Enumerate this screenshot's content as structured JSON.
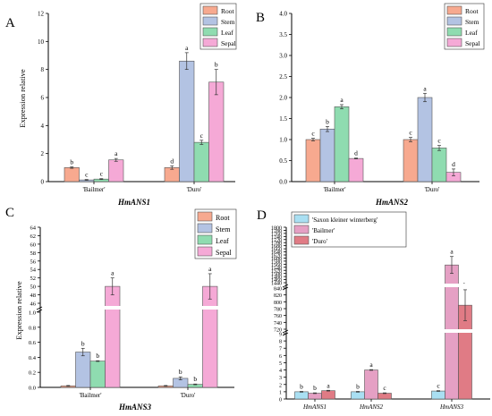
{
  "figure": {
    "panel_letters": [
      "A",
      "B",
      "C",
      "D"
    ]
  },
  "chart_data": [
    {
      "panel": "A",
      "type": "bar",
      "categories": [
        "'Bailmer'",
        "'Duro'"
      ],
      "series": [
        {
          "name": "Root",
          "color": "#f7a98f",
          "values": [
            1.0,
            1.0
          ],
          "errors": [
            0.05,
            0.12
          ],
          "letters": [
            "b",
            "d"
          ]
        },
        {
          "name": "Stem",
          "color": "#b3c3e3",
          "values": [
            0.12,
            8.6
          ],
          "errors": [
            0.03,
            0.6
          ],
          "letters": [
            "c",
            "a"
          ]
        },
        {
          "name": "Leaf",
          "color": "#8fdcb0",
          "values": [
            0.18,
            2.8
          ],
          "errors": [
            0.03,
            0.15
          ],
          "letters": [
            "c",
            "c"
          ]
        },
        {
          "name": "Sepal",
          "color": "#f5a9d6",
          "values": [
            1.55,
            7.1
          ],
          "errors": [
            0.1,
            0.9
          ],
          "letters": [
            "a",
            "b"
          ]
        }
      ],
      "ylabel": "Expression relative",
      "xlabel": "HmANS1",
      "ylim": [
        0,
        12
      ],
      "yticks": [
        "0",
        "2",
        "4",
        "6",
        "8",
        "10",
        "12"
      ],
      "legend": "top-right"
    },
    {
      "panel": "B",
      "type": "bar",
      "categories": [
        "'Bailmer'",
        "'Duro'"
      ],
      "series": [
        {
          "name": "Root",
          "color": "#f7a98f",
          "values": [
            1.0,
            1.0
          ],
          "errors": [
            0.03,
            0.05
          ],
          "letters": [
            "c",
            "c"
          ]
        },
        {
          "name": "Stem",
          "color": "#b3c3e3",
          "values": [
            1.25,
            2.0
          ],
          "errors": [
            0.06,
            0.1
          ],
          "letters": [
            "b",
            "a"
          ]
        },
        {
          "name": "Leaf",
          "color": "#8fdcb0",
          "values": [
            1.78,
            0.8
          ],
          "errors": [
            0.05,
            0.06
          ],
          "letters": [
            "a",
            "c"
          ]
        },
        {
          "name": "Sepal",
          "color": "#f5a9d6",
          "values": [
            0.55,
            0.22
          ],
          "errors": [
            0.01,
            0.08
          ],
          "letters": [
            "d",
            "d"
          ]
        }
      ],
      "ylabel": "",
      "xlabel": "HmANS2",
      "ylim": [
        0,
        4.0
      ],
      "yticks": [
        "0.0",
        "0.5",
        "1.0",
        "1.5",
        "2.0",
        "2.5",
        "3.0",
        "3.5",
        "4.0"
      ],
      "legend": "top-right"
    },
    {
      "panel": "C",
      "type": "bar",
      "categories": [
        "'Bailmer'",
        "'Duro'"
      ],
      "series": [
        {
          "name": "Root",
          "color": "#f7a98f",
          "values": [
            0.02,
            0.02
          ],
          "errors": [
            0.005,
            0.005
          ],
          "letters": [
            "",
            ""
          ]
        },
        {
          "name": "Stem",
          "color": "#b3c3e3",
          "values": [
            0.47,
            0.12
          ],
          "errors": [
            0.05,
            0.02
          ],
          "letters": [
            "b",
            "b"
          ]
        },
        {
          "name": "Leaf",
          "color": "#8fdcb0",
          "values": [
            0.35,
            0.04
          ],
          "errors": [
            0.005,
            0.005
          ],
          "letters": [
            "b",
            "b"
          ]
        },
        {
          "name": "Sepal",
          "color": "#f5a9d6",
          "values": [
            50.0,
            50.0
          ],
          "errors": [
            2.0,
            3.0
          ],
          "letters": [
            "a",
            "a"
          ]
        }
      ],
      "ylabel": "Expression relative",
      "xlabel": "HmANS3",
      "axis_break": true,
      "lower_range": [
        0,
        1.0
      ],
      "upper_range": [
        46,
        64
      ],
      "yticks_lower": [
        "0.0",
        "0.2",
        "0.4",
        "0.6",
        "0.8",
        "1.0"
      ],
      "yticks_upper": [
        "46",
        "48",
        "50",
        "52",
        "54",
        "56",
        "58",
        "60",
        "62",
        "64"
      ],
      "legend": "top-right"
    },
    {
      "panel": "D",
      "type": "bar",
      "categories": [
        "HmANS1",
        "HmANS2",
        "HmANS3"
      ],
      "series": [
        {
          "name": "'Saxon kleiner winterberg'",
          "color": "#a9dff2",
          "values": [
            1.0,
            1.0,
            1.1
          ],
          "errors": [
            0.05,
            0.05,
            0.05
          ],
          "letters": [
            "b",
            "b",
            "c"
          ]
        },
        {
          "name": "'Bailmer'",
          "color": "#e5a0c4",
          "values": [
            0.8,
            4.0,
            1555
          ],
          "errors": [
            0.05,
            0.05,
            55
          ],
          "letters": [
            "b",
            "a",
            "a"
          ]
        },
        {
          "name": "'Duro'",
          "color": "#e07b85",
          "values": [
            1.15,
            0.8,
            790
          ],
          "errors": [
            0.05,
            0.05,
            45
          ],
          "letters": [
            "a",
            "c",
            "b"
          ]
        }
      ],
      "ylabel": "",
      "xlabel": "",
      "axis_break": true,
      "lower_range": [
        0,
        9
      ],
      "middle_range": [
        720,
        840
      ],
      "upper_range": [
        1440,
        1800
      ],
      "yticks_lower": [
        "0",
        "1",
        "2",
        "3",
        "4",
        "5",
        "6",
        "7",
        "8",
        "9"
      ],
      "yticks_middle": [
        "720",
        "740",
        "760",
        "780",
        "800",
        "820",
        "840"
      ],
      "yticks_upper": [
        "1440",
        "1460",
        "1480",
        "1500",
        "1520",
        "1540",
        "1560",
        "1580",
        "1600",
        "1620",
        "1640",
        "1660",
        "1680",
        "1700",
        "1720",
        "1740",
        "1760",
        "1780",
        "1800"
      ],
      "legend": "top-left"
    }
  ]
}
